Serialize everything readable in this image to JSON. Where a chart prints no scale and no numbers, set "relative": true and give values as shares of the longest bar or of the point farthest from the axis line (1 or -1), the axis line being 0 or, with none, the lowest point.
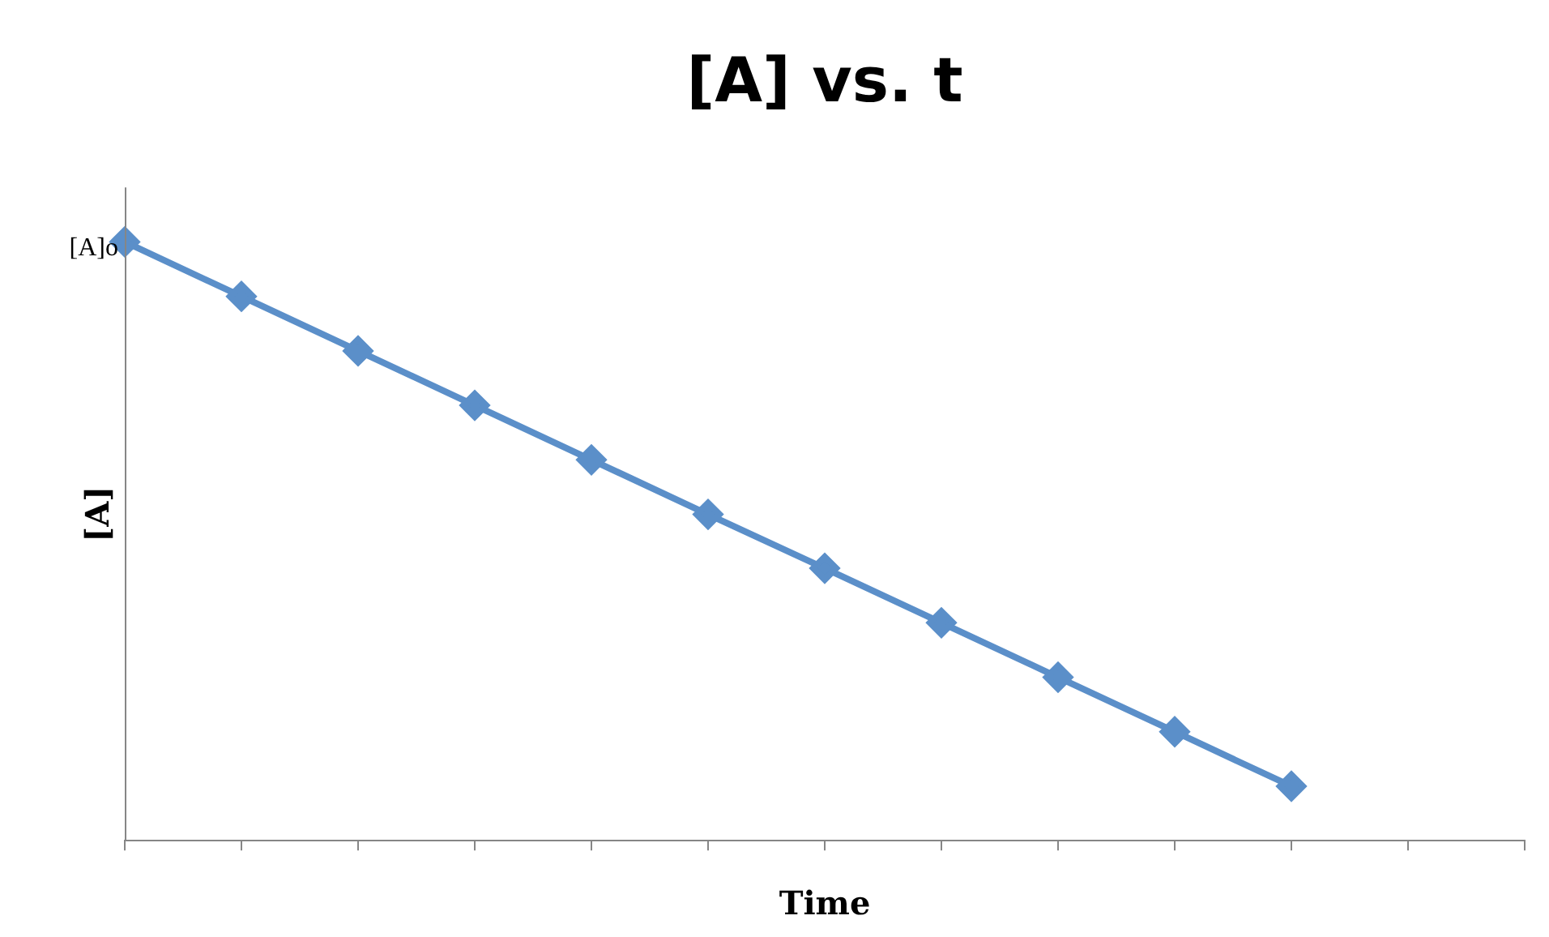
{
  "chart_data": {
    "type": "line",
    "title": "[A] vs. t",
    "xlabel": "Time",
    "ylabel": "[A]",
    "relative": true,
    "categories": [
      null,
      null,
      null,
      null,
      null,
      null,
      null,
      null,
      null,
      null,
      null,
      null,
      null
    ],
    "series": [
      {
        "color": "#5b8fc9",
        "values": [
          1,
          0.909,
          0.818,
          0.727,
          0.636,
          0.545,
          0.455,
          0.364,
          0.273,
          0.182,
          0.091,
          null,
          null
        ]
      }
    ],
    "annotations": [
      "[A]o"
    ],
    "marker": "diamond",
    "line_style": "solid",
    "grid": false,
    "legend": false
  }
}
